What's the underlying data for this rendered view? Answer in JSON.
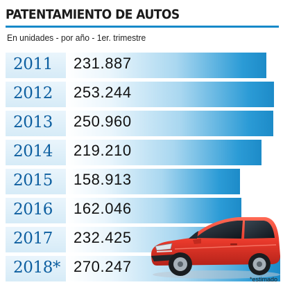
{
  "header": {
    "title": "PATENTAMIENTO DE AUTOS",
    "subtitle": "En unidades - por año - 1er. trimestre"
  },
  "footnote": "*estimado",
  "colors": {
    "accent": "#1689c9",
    "year_text": "#0d5fa0",
    "car_body": "#e8392b"
  },
  "icons": {
    "car": "red-hatchback-car-illustration"
  },
  "chart_data": {
    "type": "bar",
    "orientation": "horizontal",
    "categories": [
      "2011",
      "2012",
      "2013",
      "2014",
      "2015",
      "2016",
      "2017",
      "2018*"
    ],
    "values": [
      231887,
      253244,
      250960,
      219210,
      158913,
      162046,
      232425,
      270247
    ],
    "value_labels": [
      "231.887",
      "253.244",
      "250.960",
      "219.210",
      "158.913",
      "162.046",
      "232.425",
      "270.247"
    ],
    "title": "PATENTAMIENTO DE AUTOS",
    "subtitle": "En unidades - por año - 1er. trimestre",
    "legend": "none",
    "grid": false
  }
}
